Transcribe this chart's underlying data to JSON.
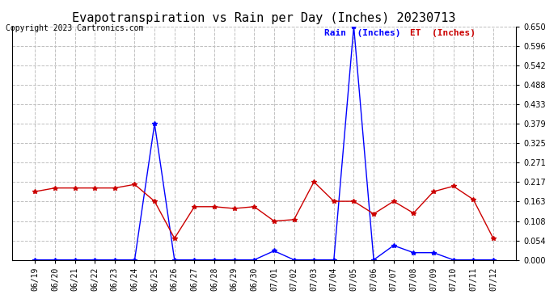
{
  "title": "Evapotranspiration vs Rain per Day (Inches) 20230713",
  "copyright": "Copyright 2023 Cartronics.com",
  "legend_rain": "Rain  (Inches)",
  "legend_et": "ET  (Inches)",
  "dates": [
    "06/19",
    "06/20",
    "06/21",
    "06/22",
    "06/23",
    "06/24",
    "06/25",
    "06/26",
    "06/27",
    "06/28",
    "06/29",
    "06/30",
    "07/01",
    "07/02",
    "07/03",
    "07/04",
    "07/05",
    "07/06",
    "07/07",
    "07/08",
    "07/09",
    "07/10",
    "07/11",
    "07/12"
  ],
  "rain": [
    0.0,
    0.0,
    0.0,
    0.0,
    0.0,
    0.0,
    0.379,
    0.0,
    0.0,
    0.0,
    0.0,
    0.0,
    0.025,
    0.0,
    0.0,
    0.0,
    0.65,
    0.0,
    0.04,
    0.02,
    0.02,
    0.0,
    0.0,
    0.0
  ],
  "et": [
    0.19,
    0.2,
    0.2,
    0.2,
    0.2,
    0.21,
    0.163,
    0.06,
    0.148,
    0.148,
    0.143,
    0.148,
    0.108,
    0.112,
    0.217,
    0.163,
    0.163,
    0.128,
    0.163,
    0.13,
    0.19,
    0.205,
    0.168,
    0.06
  ],
  "rain_color": "#0000ff",
  "et_color": "#cc0000",
  "ylim": [
    0.0,
    0.65
  ],
  "yticks": [
    0.0,
    0.054,
    0.108,
    0.163,
    0.217,
    0.271,
    0.325,
    0.379,
    0.433,
    0.488,
    0.542,
    0.596,
    0.65
  ],
  "grid_color": "#c0c0c0",
  "bg_color": "#ffffff",
  "title_fontsize": 11,
  "tick_fontsize": 7,
  "legend_fontsize": 8,
  "copyright_fontsize": 7
}
